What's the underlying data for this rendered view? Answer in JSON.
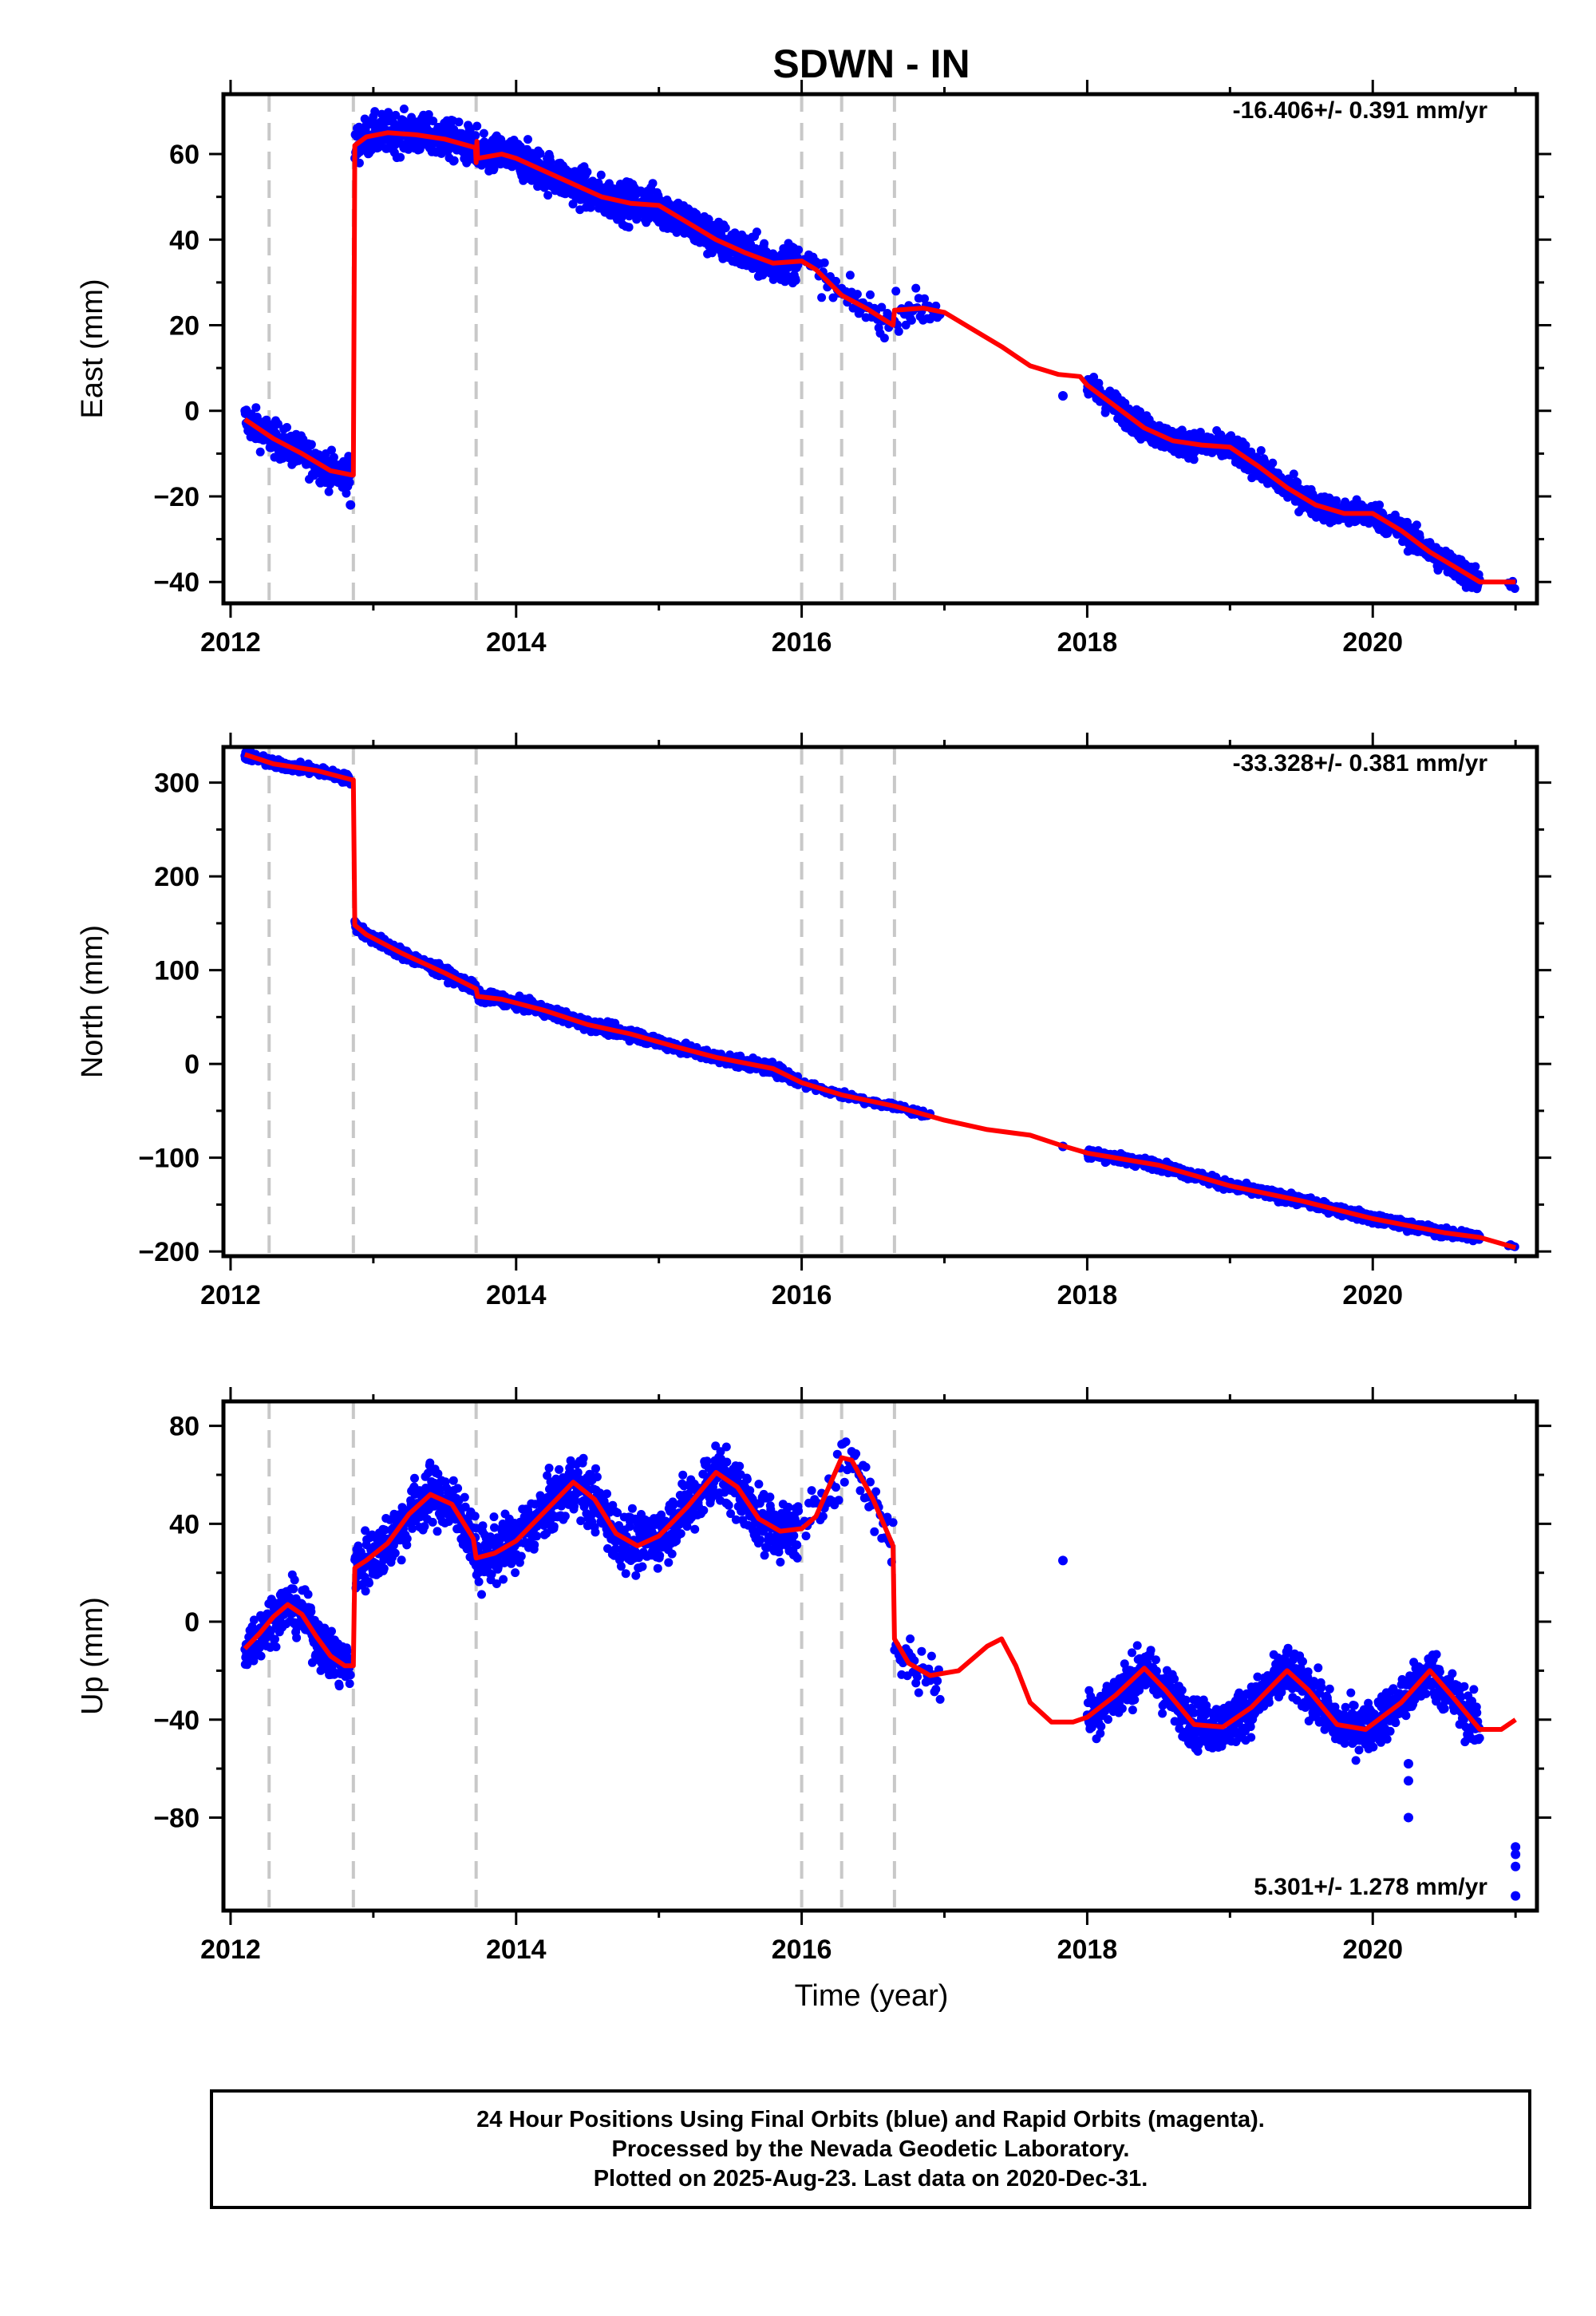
{
  "title": "SDWN - IN",
  "xlabel": "Time (year)",
  "footer": {
    "line1": "24 Hour Positions Using Final Orbits (blue) and Rapid Orbits (magenta).",
    "line2": "Processed by the Nevada Geodetic Laboratory.",
    "line3": "Plotted on 2025-Aug-23. Last data on 2020-Dec-31."
  },
  "colors": {
    "data": "#0000ff",
    "model": "#ff0000",
    "breaks": "#c8c8c8",
    "frame": "#000000"
  },
  "chart_data": [
    {
      "type": "scatter",
      "component": "East",
      "ylabel": "East (mm)",
      "rate": "-16.406+/- 0.391 mm/yr",
      "xlim": [
        2011.95,
        2021.15
      ],
      "ylim": [
        -45,
        74
      ],
      "x_ticks": [
        2012,
        2014,
        2016,
        2018,
        2020
      ],
      "x_tick_labels": [
        "2012",
        "2014",
        "2016",
        "2018",
        "2020"
      ],
      "y_ticks": [
        -40,
        -20,
        0,
        20,
        40,
        60
      ],
      "y_tick_labels": [
        "−40",
        "−20",
        "0",
        "20",
        "40",
        "60"
      ],
      "breaks": [
        2012.27,
        2012.86,
        2013.72,
        2016.0,
        2016.28,
        2016.65
      ],
      "model_line": [
        [
          2012.1,
          -2
        ],
        [
          2012.3,
          -6.5
        ],
        [
          2012.5,
          -10
        ],
        [
          2012.7,
          -14
        ],
        [
          2012.85,
          -15
        ],
        [
          2012.86,
          -15
        ],
        [
          2012.87,
          62
        ],
        [
          2012.95,
          64
        ],
        [
          2013.1,
          65
        ],
        [
          2013.3,
          64.5
        ],
        [
          2013.5,
          63.5
        ],
        [
          2013.715,
          61.5
        ],
        [
          2013.72,
          58
        ],
        [
          2013.725,
          63
        ],
        [
          2013.73,
          59
        ],
        [
          2013.9,
          60
        ],
        [
          2014.0,
          59
        ],
        [
          2014.2,
          56
        ],
        [
          2014.4,
          53
        ],
        [
          2014.6,
          50
        ],
        [
          2014.8,
          48.5
        ],
        [
          2015.0,
          48
        ],
        [
          2015.2,
          44
        ],
        [
          2015.4,
          40
        ],
        [
          2015.6,
          37
        ],
        [
          2015.8,
          34.5
        ],
        [
          2016.0,
          35
        ],
        [
          2016.1,
          33
        ],
        [
          2016.28,
          27
        ],
        [
          2016.45,
          24
        ],
        [
          2016.64,
          20
        ],
        [
          2016.65,
          23.5
        ],
        [
          2016.85,
          24
        ],
        [
          2017.0,
          23
        ],
        [
          2017.2,
          19
        ],
        [
          2017.4,
          15
        ],
        [
          2017.6,
          10.5
        ],
        [
          2017.8,
          8.5
        ],
        [
          2017.95,
          8
        ],
        [
          2018.0,
          6
        ],
        [
          2018.2,
          1
        ],
        [
          2018.4,
          -4
        ],
        [
          2018.6,
          -7
        ],
        [
          2018.8,
          -8
        ],
        [
          2019.0,
          -8.5
        ],
        [
          2019.2,
          -13
        ],
        [
          2019.4,
          -18
        ],
        [
          2019.6,
          -22
        ],
        [
          2019.8,
          -24
        ],
        [
          2020.0,
          -24
        ],
        [
          2020.2,
          -28
        ],
        [
          2020.4,
          -33
        ],
        [
          2020.6,
          -37
        ],
        [
          2020.75,
          -40
        ],
        [
          2020.9,
          -40
        ],
        [
          2021.0,
          -40
        ]
      ],
      "data_segments": [
        {
          "start": 2012.1,
          "end": 2012.84,
          "spacing": 0.0027,
          "noise": 2.0
        },
        {
          "start": 2012.87,
          "end": 2015.98,
          "spacing": 0.0027,
          "noise": 2.3
        },
        {
          "start": 2016.02,
          "end": 2016.97,
          "spacing": 0.01,
          "noise": 2.0
        },
        {
          "start": 2018.0,
          "end": 2020.75,
          "spacing": 0.0027,
          "noise": 1.5
        },
        {
          "start": 2020.95,
          "end": 2021.0,
          "spacing": 0.015,
          "noise": 1.0
        }
      ],
      "outliers": [
        [
          2017.83,
          3.5
        ],
        [
          2012.84,
          -22
        ]
      ]
    },
    {
      "type": "scatter",
      "component": "North",
      "ylabel": "North (mm)",
      "rate": "-33.328+/- 0.381 mm/yr",
      "xlim": [
        2011.95,
        2021.15
      ],
      "ylim": [
        -205,
        338
      ],
      "x_ticks": [
        2012,
        2014,
        2016,
        2018,
        2020
      ],
      "x_tick_labels": [
        "2012",
        "2014",
        "2016",
        "2018",
        "2020"
      ],
      "y_ticks": [
        -200,
        -100,
        0,
        100,
        200,
        300
      ],
      "y_tick_labels": [
        "−200",
        "−100",
        "0",
        "100",
        "200",
        "300"
      ],
      "breaks": [
        2012.27,
        2012.86,
        2013.72,
        2016.0,
        2016.28,
        2016.65
      ],
      "model_line": [
        [
          2012.1,
          330
        ],
        [
          2012.3,
          320
        ],
        [
          2012.6,
          313
        ],
        [
          2012.85,
          303
        ],
        [
          2012.86,
          303
        ],
        [
          2012.87,
          148
        ],
        [
          2012.95,
          138
        ],
        [
          2013.2,
          118
        ],
        [
          2013.5,
          97
        ],
        [
          2013.72,
          80
        ],
        [
          2013.73,
          72
        ],
        [
          2013.9,
          69
        ],
        [
          2014.2,
          57
        ],
        [
          2014.5,
          42
        ],
        [
          2014.8,
          32
        ],
        [
          2015.1,
          19
        ],
        [
          2015.4,
          7
        ],
        [
          2015.8,
          -5
        ],
        [
          2016.0,
          -20
        ],
        [
          2016.28,
          -33
        ],
        [
          2016.65,
          -45
        ],
        [
          2017.0,
          -60
        ],
        [
          2017.3,
          -70
        ],
        [
          2017.6,
          -76
        ],
        [
          2017.8,
          -86
        ],
        [
          2018.0,
          -95
        ],
        [
          2018.5,
          -108
        ],
        [
          2019.0,
          -130
        ],
        [
          2019.5,
          -146
        ],
        [
          2020.0,
          -165
        ],
        [
          2020.5,
          -180
        ],
        [
          2020.75,
          -185
        ],
        [
          2021.0,
          -196
        ]
      ],
      "data_segments": [
        {
          "start": 2012.1,
          "end": 2012.84,
          "spacing": 0.0027,
          "noise": 2.5
        },
        {
          "start": 2012.87,
          "end": 2015.98,
          "spacing": 0.0027,
          "noise": 3.0
        },
        {
          "start": 2016.02,
          "end": 2016.9,
          "spacing": 0.01,
          "noise": 2.5
        },
        {
          "start": 2018.0,
          "end": 2020.75,
          "spacing": 0.0027,
          "noise": 2.5
        },
        {
          "start": 2020.95,
          "end": 2021.0,
          "spacing": 0.015,
          "noise": 1.5
        }
      ],
      "outliers": [
        [
          2017.83,
          -88
        ]
      ]
    },
    {
      "type": "scatter",
      "component": "Up",
      "ylabel": "Up (mm)",
      "rate": "5.301+/- 1.278 mm/yr",
      "xlim": [
        2011.95,
        2021.15
      ],
      "ylim": [
        -118,
        90
      ],
      "x_ticks": [
        2012,
        2014,
        2016,
        2018,
        2020
      ],
      "x_tick_labels": [
        "2012",
        "2014",
        "2016",
        "2018",
        "2020"
      ],
      "y_ticks": [
        -80,
        -40,
        0,
        40,
        80
      ],
      "y_tick_labels": [
        "−80",
        "−40",
        "0",
        "40",
        "80"
      ],
      "breaks": [
        2012.27,
        2012.86,
        2013.72,
        2016.0,
        2016.28,
        2016.65
      ],
      "model_line": [
        [
          2012.1,
          -11
        ],
        [
          2012.2,
          -5
        ],
        [
          2012.3,
          2
        ],
        [
          2012.4,
          7
        ],
        [
          2012.5,
          3
        ],
        [
          2012.6,
          -6
        ],
        [
          2012.7,
          -14
        ],
        [
          2012.8,
          -18
        ],
        [
          2012.86,
          -18
        ],
        [
          2012.87,
          22
        ],
        [
          2012.95,
          25
        ],
        [
          2013.1,
          32
        ],
        [
          2013.25,
          44
        ],
        [
          2013.4,
          52
        ],
        [
          2013.55,
          48
        ],
        [
          2013.7,
          34
        ],
        [
          2013.72,
          26
        ],
        [
          2013.85,
          28
        ],
        [
          2014.0,
          33
        ],
        [
          2014.2,
          45
        ],
        [
          2014.4,
          57
        ],
        [
          2014.55,
          50
        ],
        [
          2014.7,
          36
        ],
        [
          2014.85,
          31
        ],
        [
          2015.0,
          35
        ],
        [
          2015.2,
          47
        ],
        [
          2015.4,
          61
        ],
        [
          2015.55,
          55
        ],
        [
          2015.7,
          42
        ],
        [
          2015.85,
          37
        ],
        [
          2016.0,
          38
        ],
        [
          2016.1,
          43
        ],
        [
          2016.28,
          67
        ],
        [
          2016.35,
          66
        ],
        [
          2016.5,
          50
        ],
        [
          2016.64,
          31
        ],
        [
          2016.65,
          -7
        ],
        [
          2016.75,
          -17
        ],
        [
          2016.9,
          -22
        ],
        [
          2017.1,
          -20
        ],
        [
          2017.3,
          -10
        ],
        [
          2017.4,
          -7
        ],
        [
          2017.5,
          -18
        ],
        [
          2017.6,
          -33
        ],
        [
          2017.75,
          -41
        ],
        [
          2017.9,
          -41
        ],
        [
          2018.0,
          -39
        ],
        [
          2018.2,
          -30
        ],
        [
          2018.4,
          -19
        ],
        [
          2018.55,
          -28
        ],
        [
          2018.75,
          -42
        ],
        [
          2018.95,
          -43
        ],
        [
          2019.15,
          -35
        ],
        [
          2019.4,
          -20
        ],
        [
          2019.55,
          -28
        ],
        [
          2019.75,
          -42
        ],
        [
          2019.95,
          -44
        ],
        [
          2020.2,
          -33
        ],
        [
          2020.4,
          -20
        ],
        [
          2020.55,
          -30
        ],
        [
          2020.75,
          -44
        ],
        [
          2020.9,
          -44
        ],
        [
          2021.0,
          -40
        ]
      ],
      "data_segments": [
        {
          "start": 2012.1,
          "end": 2012.84,
          "spacing": 0.0027,
          "noise": 5.0
        },
        {
          "start": 2012.87,
          "end": 2015.98,
          "spacing": 0.0027,
          "noise": 6.0
        },
        {
          "start": 2016.02,
          "end": 2016.97,
          "spacing": 0.01,
          "noise": 6.0
        },
        {
          "start": 2018.0,
          "end": 2020.75,
          "spacing": 0.0027,
          "noise": 5.0
        }
      ],
      "outliers": [
        [
          2017.83,
          25
        ],
        [
          2020.25,
          -58
        ],
        [
          2020.25,
          -65
        ],
        [
          2020.25,
          -80
        ],
        [
          2021.0,
          -92
        ],
        [
          2021.0,
          -95
        ],
        [
          2021.0,
          -100
        ],
        [
          2021.0,
          -112
        ]
      ]
    }
  ]
}
